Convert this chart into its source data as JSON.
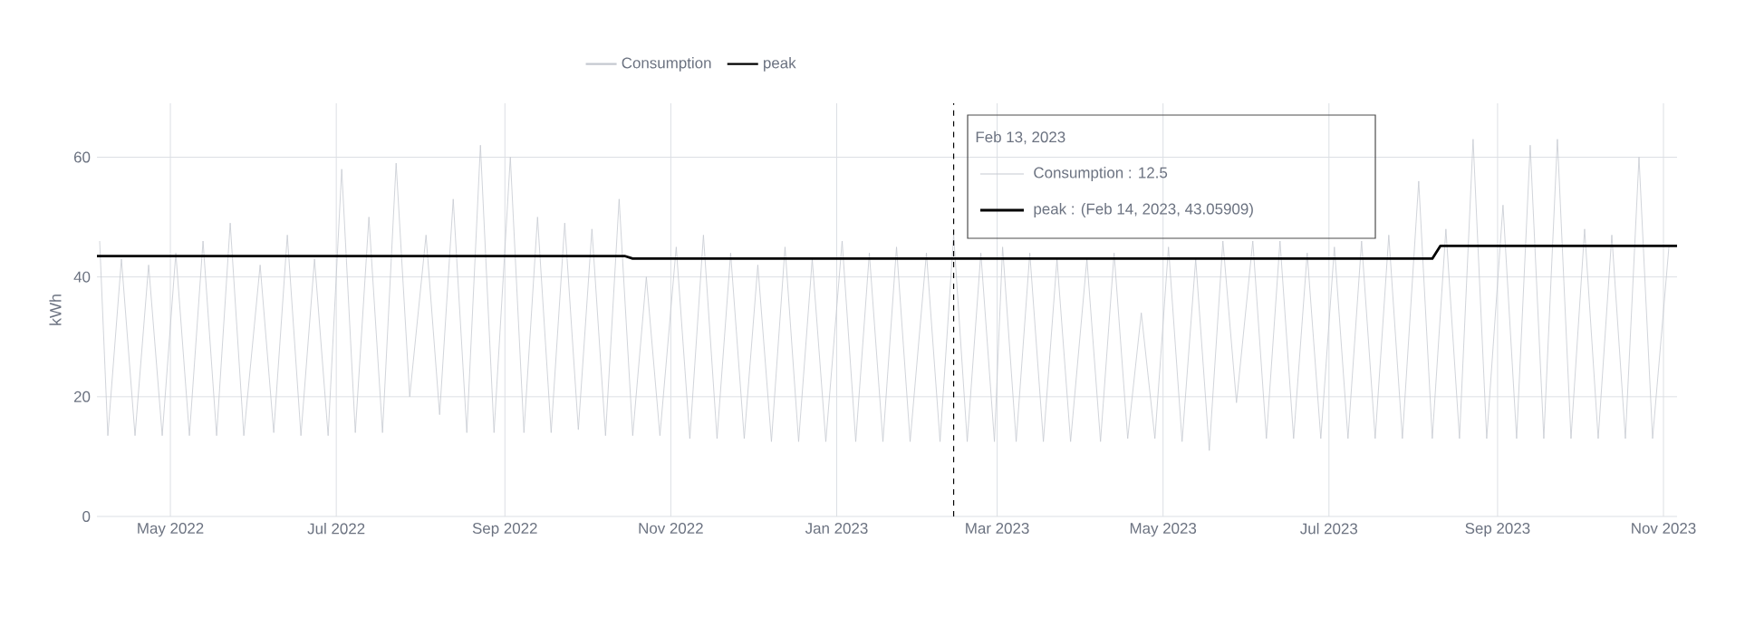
{
  "chart_data": {
    "type": "line",
    "ylabel": "kWh",
    "xlim": [
      "2022-04-04",
      "2023-11-06"
    ],
    "ylim": [
      0,
      69
    ],
    "xticks": [
      {
        "value": "2022-05-01",
        "label": "May 2022"
      },
      {
        "value": "2022-07-01",
        "label": "Jul 2022"
      },
      {
        "value": "2022-09-01",
        "label": "Sep 2022"
      },
      {
        "value": "2022-11-01",
        "label": "Nov 2022"
      },
      {
        "value": "2023-01-01",
        "label": "Jan 2023"
      },
      {
        "value": "2023-03-01",
        "label": "Mar 2023"
      },
      {
        "value": "2023-05-01",
        "label": "May 2023"
      },
      {
        "value": "2023-07-01",
        "label": "Jul 2023"
      },
      {
        "value": "2023-09-01",
        "label": "Sep 2023"
      },
      {
        "value": "2023-11-01",
        "label": "Nov 2023"
      }
    ],
    "yticks": [
      0,
      20,
      40,
      60
    ],
    "grid": true,
    "legend": "top",
    "marker": "none",
    "series": [
      {
        "name": "Consumption",
        "color": "#c5c9d1",
        "x": [
          "2022-04-05",
          "2022-04-08",
          "2022-04-13",
          "2022-04-18",
          "2022-04-23",
          "2022-04-28",
          "2022-05-03",
          "2022-05-08",
          "2022-05-13",
          "2022-05-18",
          "2022-05-23",
          "2022-05-28",
          "2022-06-03",
          "2022-06-08",
          "2022-06-13",
          "2022-06-18",
          "2022-06-23",
          "2022-06-28",
          "2022-07-03",
          "2022-07-08",
          "2022-07-13",
          "2022-07-18",
          "2022-07-23",
          "2022-07-28",
          "2022-08-03",
          "2022-08-08",
          "2022-08-13",
          "2022-08-18",
          "2022-08-23",
          "2022-08-28",
          "2022-09-03",
          "2022-09-08",
          "2022-09-13",
          "2022-09-18",
          "2022-09-23",
          "2022-09-28",
          "2022-10-03",
          "2022-10-08",
          "2022-10-13",
          "2022-10-18",
          "2022-10-23",
          "2022-10-28",
          "2022-11-03",
          "2022-11-08",
          "2022-11-13",
          "2022-11-18",
          "2022-11-23",
          "2022-11-28",
          "2022-12-03",
          "2022-12-08",
          "2022-12-13",
          "2022-12-18",
          "2022-12-23",
          "2022-12-28",
          "2023-01-03",
          "2023-01-08",
          "2023-01-13",
          "2023-01-18",
          "2023-01-23",
          "2023-01-28",
          "2023-02-03",
          "2023-02-08",
          "2023-02-13",
          "2023-02-18",
          "2023-02-23",
          "2023-02-28",
          "2023-03-03",
          "2023-03-08",
          "2023-03-13",
          "2023-03-18",
          "2023-03-23",
          "2023-03-28",
          "2023-04-03",
          "2023-04-08",
          "2023-04-13",
          "2023-04-18",
          "2023-04-23",
          "2023-04-28",
          "2023-05-03",
          "2023-05-08",
          "2023-05-13",
          "2023-05-18",
          "2023-05-23",
          "2023-05-28",
          "2023-06-03",
          "2023-06-08",
          "2023-06-13",
          "2023-06-18",
          "2023-06-23",
          "2023-06-28",
          "2023-07-03",
          "2023-07-08",
          "2023-07-13",
          "2023-07-18",
          "2023-07-23",
          "2023-07-28",
          "2023-08-03",
          "2023-08-08",
          "2023-08-13",
          "2023-08-18",
          "2023-08-23",
          "2023-08-28",
          "2023-09-03",
          "2023-09-08",
          "2023-09-13",
          "2023-09-18",
          "2023-09-23",
          "2023-09-28",
          "2023-10-03",
          "2023-10-08",
          "2023-10-13",
          "2023-10-18",
          "2023-10-23",
          "2023-10-28",
          "2023-11-03"
        ],
        "values": [
          46,
          13.5,
          43,
          13.5,
          42,
          13.5,
          44,
          13.5,
          46,
          13.5,
          49,
          13.5,
          42,
          14,
          47,
          13.5,
          43,
          13.5,
          58,
          14,
          50,
          14,
          59,
          20,
          47,
          17,
          53,
          14,
          62,
          14,
          60,
          14,
          50,
          14,
          49,
          14.5,
          48,
          13.5,
          53,
          13.5,
          40,
          13.5,
          45,
          13,
          47,
          13,
          44,
          13,
          42,
          12.5,
          45,
          12.5,
          43,
          12.5,
          46,
          12.5,
          44,
          12.5,
          45,
          12.5,
          44,
          12.5,
          47,
          12.5,
          44,
          12.5,
          45,
          12.5,
          44,
          12.5,
          43,
          12.5,
          43,
          12.5,
          44,
          13,
          34,
          13,
          45,
          12.5,
          43,
          11,
          46,
          19,
          46,
          13,
          46,
          13,
          44,
          13,
          45,
          13,
          46,
          13,
          47,
          13,
          56,
          13,
          48,
          13,
          63,
          13,
          52,
          13,
          62,
          13,
          63,
          13,
          48,
          13,
          47,
          13,
          60,
          13,
          45
        ]
      },
      {
        "name": "peak",
        "color": "#000000",
        "x": [
          "2022-04-04",
          "2022-10-15",
          "2022-10-18",
          "2023-08-08",
          "2023-08-11",
          "2023-11-06"
        ],
        "values": [
          43.5,
          43.5,
          43.06,
          43.06,
          45.2,
          45.2
        ]
      }
    ],
    "ref_lines": [
      {
        "axis": "x",
        "value": "2023-02-13",
        "color": "#000000",
        "line_style": "dashed"
      }
    ],
    "annotations": [
      "Feb 13, 2023",
      "Consumption : 12.5",
      "peak : (Feb 14, 2023, 43.05909)"
    ]
  }
}
